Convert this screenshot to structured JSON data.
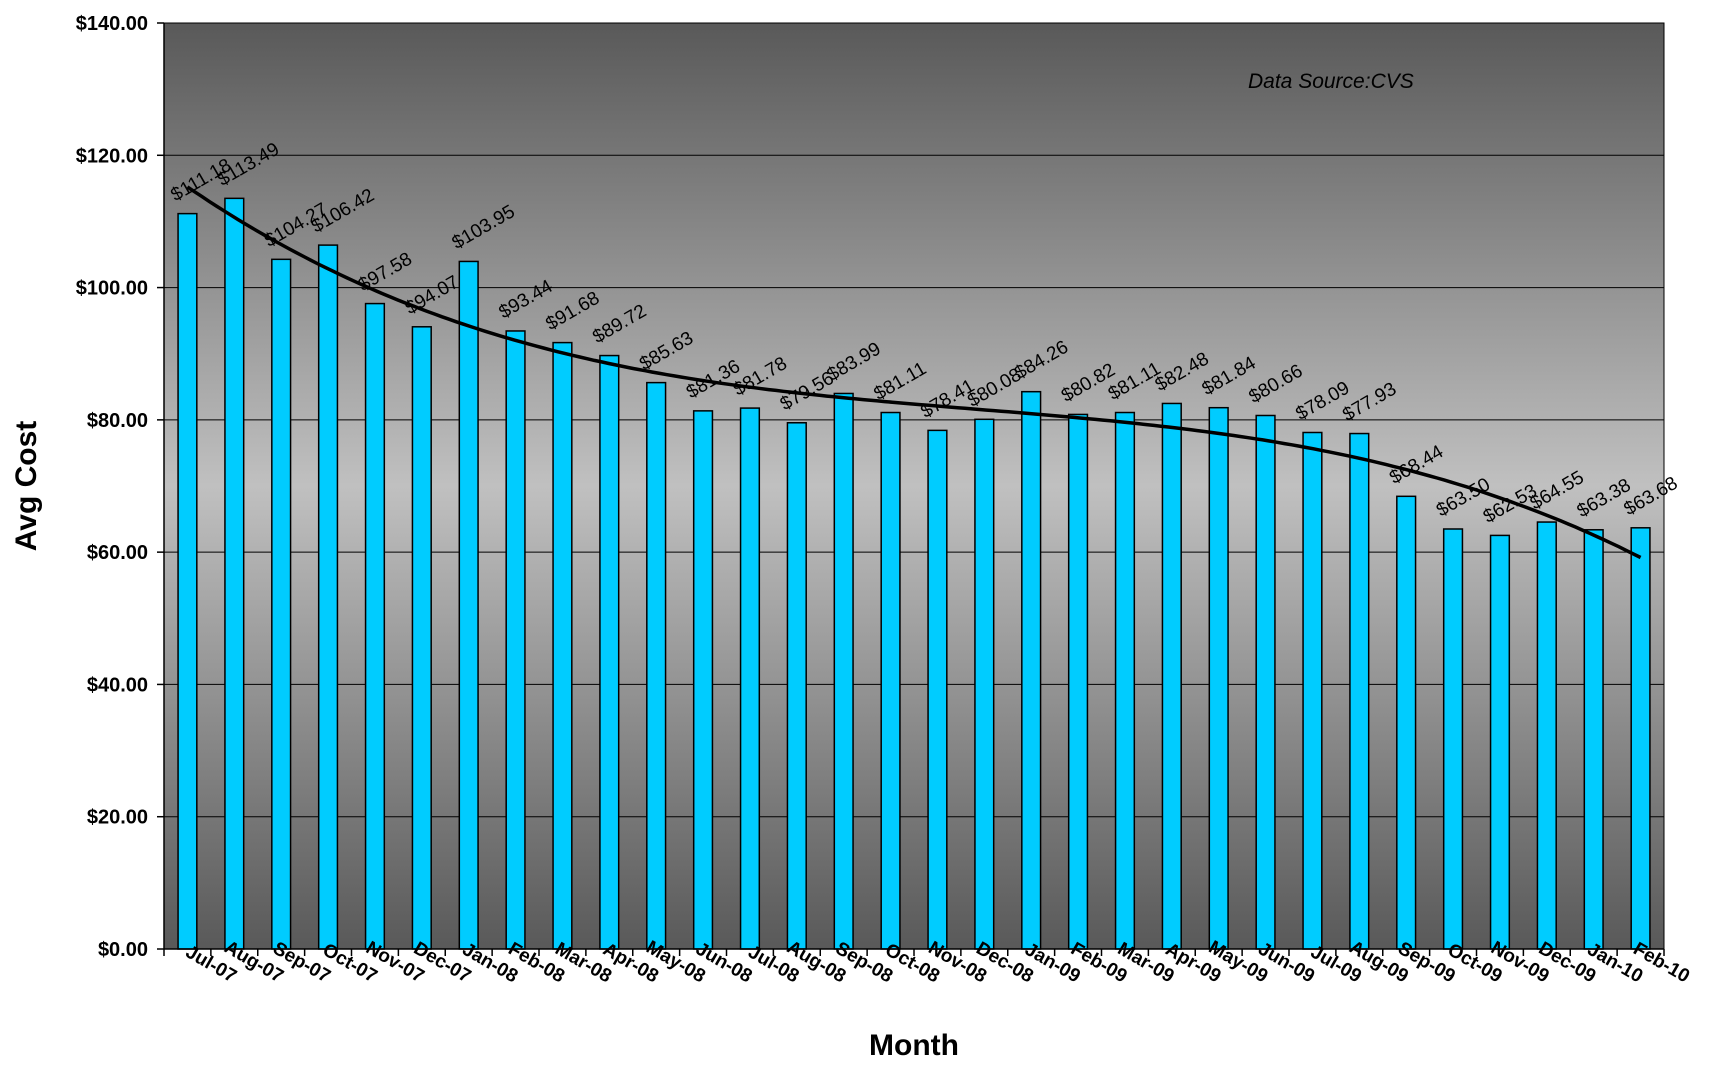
{
  "chart_data": {
    "type": "bar",
    "title": "",
    "xlabel": "Month",
    "ylabel": "Avg Cost",
    "annotation": "Data Source:CVS",
    "ylim": [
      0,
      140
    ],
    "y_ticks": [
      "$0.00",
      "$20.00",
      "$40.00",
      "$60.00",
      "$80.00",
      "$100.00",
      "$120.00",
      "$140.00"
    ],
    "grid": true,
    "legend": "none",
    "trendline": "smooth polynomial trend overlaid on bars",
    "categories": [
      "Jul-07",
      "Aug-07",
      "Sep-07",
      "Oct-07",
      "Nov-07",
      "Dec-07",
      "Jan-08",
      "Feb-08",
      "Mar-08",
      "Apr-08",
      "May-08",
      "Jun-08",
      "Jul-08",
      "Aug-08",
      "Sep-08",
      "Oct-08",
      "Nov-08",
      "Dec-08",
      "Jan-09",
      "Feb-09",
      "Mar-09",
      "Apr-09",
      "May-09",
      "Jun-09",
      "Jul-09",
      "Aug-09",
      "Sep-09",
      "Oct-09",
      "Nov-09",
      "Dec-09",
      "Jan-10",
      "Feb-10"
    ],
    "values": [
      111.18,
      113.49,
      104.27,
      106.42,
      97.58,
      94.07,
      103.95,
      93.44,
      91.68,
      89.72,
      85.63,
      81.36,
      81.78,
      79.56,
      83.99,
      81.11,
      78.41,
      80.08,
      84.26,
      80.82,
      81.11,
      82.48,
      81.84,
      80.66,
      78.09,
      77.93,
      68.44,
      63.5,
      62.53,
      64.55,
      63.38,
      63.68
    ],
    "value_labels": [
      "$111.18",
      "$113.49",
      "$104.27",
      "$106.42",
      "$97.58",
      "$94.07",
      "$103.95",
      "$93.44",
      "$91.68",
      "$89.72",
      "$85.63",
      "$81.36",
      "$81.78",
      "$79.56",
      "$83.99",
      "$81.11",
      "$78.41",
      "$80.08",
      "$84.26",
      "$80.82",
      "$81.11",
      "$82.48",
      "$81.84",
      "$80.66",
      "$78.09",
      "$77.93",
      "$68.44",
      "$63.50",
      "$62.53",
      "$64.55",
      "$63.38",
      "$63.68"
    ],
    "colors": {
      "bar_fill": "#00CCFF",
      "bar_stroke": "#000000",
      "plot_bg_top": "#595959",
      "plot_bg_mid": "#C0C0C0",
      "plot_bg_bottom": "#595959",
      "trend": "#000000"
    }
  }
}
